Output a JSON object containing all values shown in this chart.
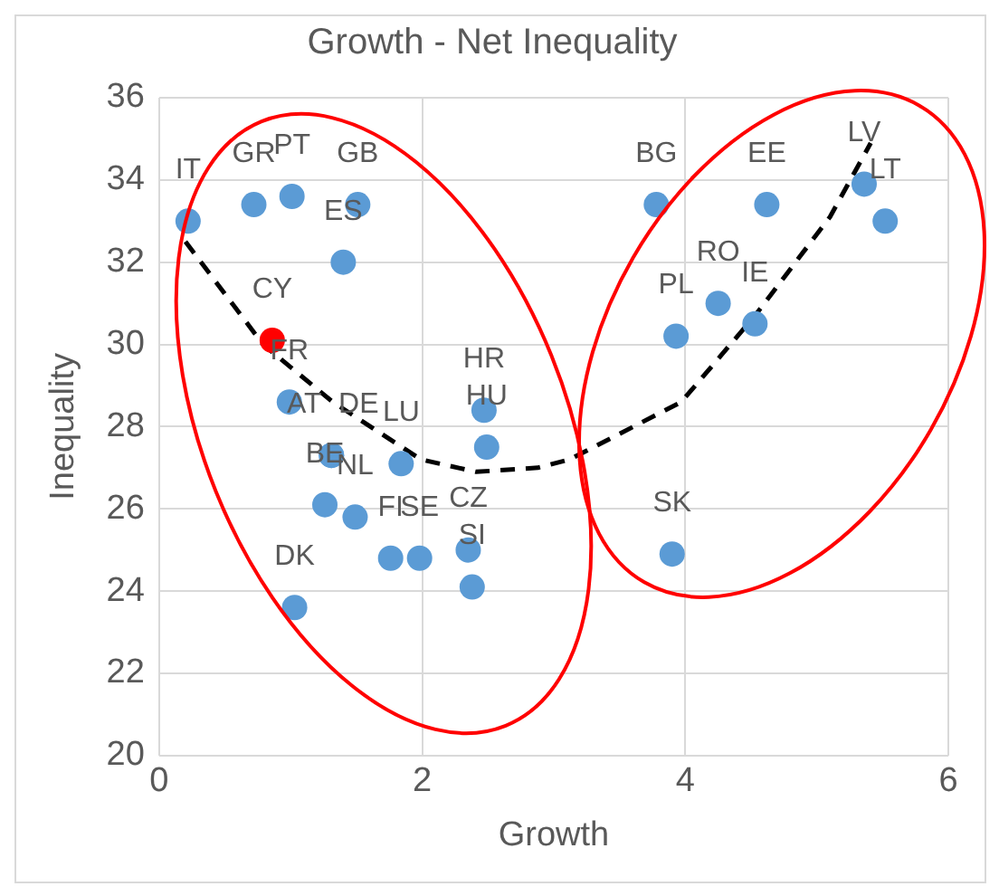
{
  "chart_data": {
    "type": "scatter",
    "title": "Growth - Net Inequality",
    "xlabel": "Growth",
    "ylabel": "Inequality",
    "xlim": [
      0,
      6
    ],
    "xticks": [
      0,
      2,
      4,
      6
    ],
    "ylim": [
      20,
      36
    ],
    "yticks": [
      20,
      22,
      24,
      26,
      28,
      30,
      32,
      34,
      36
    ],
    "grid": true,
    "legend": false,
    "marker": "circle",
    "series": [
      {
        "color": "#5b9bd5",
        "x": [
          0.22,
          0.72,
          1.01,
          1.51,
          1.4,
          0.99,
          1.31,
          1.31,
          1.26,
          1.49,
          1.84,
          1.76,
          1.98,
          2.35,
          2.38,
          2.47,
          2.49,
          1.03,
          3.78,
          4.62,
          5.36,
          5.52,
          4.25,
          4.53,
          3.93,
          3.9
        ],
        "values": [
          33.0,
          33.4,
          33.6,
          33.4,
          32.0,
          28.6,
          27.3,
          27.3,
          26.1,
          25.8,
          27.1,
          24.8,
          24.8,
          25.0,
          24.1,
          28.4,
          27.5,
          23.6,
          33.4,
          33.4,
          33.9,
          33.0,
          31.0,
          30.5,
          30.2,
          24.9
        ],
        "value_labels": [
          "IT",
          "GR",
          "PT",
          "GB",
          "ES",
          "FR",
          "AT",
          "DE",
          "BE",
          "NL",
          "LU",
          "FI",
          "SE",
          "CZ",
          "SI",
          "HR",
          "HU",
          "DK",
          "BG",
          "EE",
          "LV",
          "LT",
          "RO",
          "IE",
          "PL",
          "SK"
        ]
      },
      {
        "color": "#ff0000",
        "x": [
          0.86
        ],
        "values": [
          30.1
        ],
        "value_labels": [
          "CY"
        ]
      },
      {
        "type": "line",
        "color": "#000000",
        "marker": "none",
        "line_style": "dashed",
        "x": [
          0.2,
          0.79,
          1.32,
          1.99,
          2.41,
          2.88,
          3.12,
          3.97,
          4.53,
          5.1,
          5.41
        ],
        "values": [
          32.5,
          30.0,
          28.6,
          27.2,
          26.9,
          27.0,
          27.2,
          28.6,
          30.7,
          33.1,
          34.9
        ]
      }
    ]
  }
}
